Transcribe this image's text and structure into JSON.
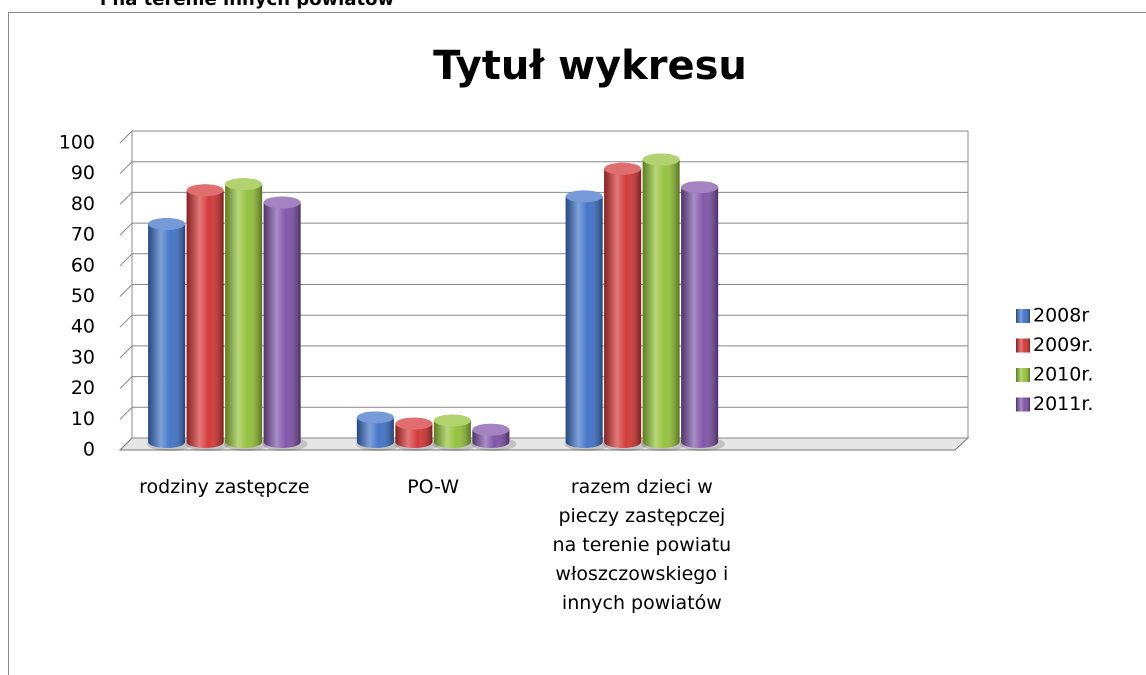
{
  "header_text": "i na terenie innych powiatów",
  "chart_data": {
    "type": "bar3d",
    "title": "Tytuł wykresu",
    "categories": [
      "rodziny zastępcze",
      "PO-W",
      "razem dzieci w pieczy zastępczej na terenie powiatu włoszczowskiego i innych powiatów",
      null
    ],
    "series": [
      {
        "name": "2008r",
        "color": "#3b6fc6",
        "values": [
          71,
          8,
          80,
          null
        ]
      },
      {
        "name": "2009r.",
        "color": "#d13130",
        "values": [
          82,
          6,
          89,
          null
        ]
      },
      {
        "name": "2010r.",
        "color": "#8fc033",
        "values": [
          84,
          7,
          92,
          null
        ]
      },
      {
        "name": "2011r.",
        "color": "#7b4fa5",
        "values": [
          78,
          4,
          83,
          null
        ]
      }
    ],
    "ylim": [
      0,
      100
    ],
    "yticks": [
      0,
      10,
      20,
      30,
      40,
      50,
      60,
      70,
      80,
      90,
      100
    ],
    "grid": true,
    "legend": "right"
  }
}
